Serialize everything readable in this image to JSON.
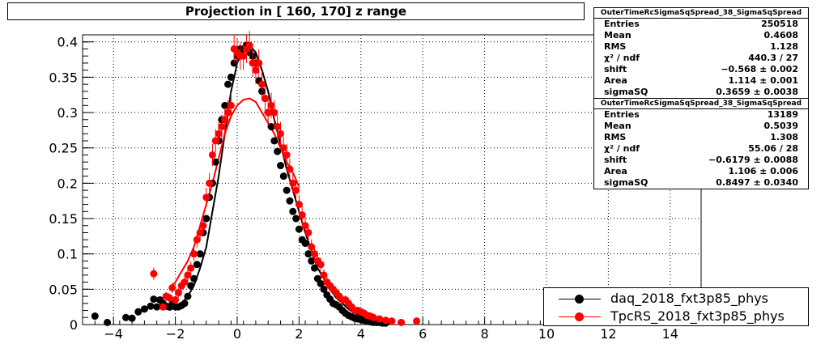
{
  "title": "Projection in [ 160, 170] z range",
  "colors": {
    "series0": "#000000",
    "series1": "#ff0000",
    "grid": "#000000"
  },
  "stats_boxes": [
    {
      "header": "OuterTimeRcSigmaSqSpread_38_SigmaSqSpread",
      "rows": [
        {
          "label": "Entries",
          "value": "250518"
        },
        {
          "label": "Mean",
          "value": "0.4608"
        },
        {
          "label": "RMS",
          "value": "1.128"
        },
        {
          "label": "χ² / ndf",
          "value": "440.3 / 27"
        },
        {
          "label": "shift",
          "value": "−0.568 ± 0.002"
        },
        {
          "label": "Area",
          "value": "1.114 ± 0.001"
        },
        {
          "label": "sigmaSQ",
          "value": "0.3659 ± 0.0038"
        }
      ]
    },
    {
      "header": "OuterTimeRcSigmaSqSpread_38_SigmaSqSpread",
      "rows": [
        {
          "label": "Entries",
          "value": "13189"
        },
        {
          "label": "Mean",
          "value": "0.5039"
        },
        {
          "label": "RMS",
          "value": "1.308"
        },
        {
          "label": "χ² / ndf",
          "value": "55.06 / 28"
        },
        {
          "label": "shift",
          "value": "−0.6179 ± 0.0088"
        },
        {
          "label": "Area",
          "value": "1.106 ± 0.006"
        },
        {
          "label": "sigmaSQ",
          "value": "0.8497 ± 0.0340"
        }
      ]
    }
  ],
  "legend": [
    "daq_2018_fxt3p85_phys",
    "TpcRS_2018_fxt3p85_phys"
  ],
  "chart_data": {
    "type": "scatter",
    "title": "Projection in [ 160, 170] z range",
    "xlabel": "",
    "ylabel": "",
    "xlim": [
      -5,
      15
    ],
    "ylim": [
      0,
      0.41
    ],
    "grid": true,
    "legend_position": "bottom-right",
    "x_ticks": [
      -4,
      -2,
      0,
      2,
      4,
      6,
      8,
      10,
      12,
      14
    ],
    "x_tick_labels": [
      "−4",
      "−2",
      "0",
      "2",
      "4",
      "6",
      "8",
      "10",
      "12",
      "14"
    ],
    "y_ticks": [
      0,
      0.05,
      0.1,
      0.15,
      0.2,
      0.25,
      0.3,
      0.35,
      0.4
    ],
    "y_tick_labels": [
      "0",
      "0.05",
      "0.1",
      "0.15",
      "0.2",
      "0.25",
      "0.3",
      "0.35",
      "0.4"
    ],
    "series": [
      {
        "name": "daq_2018_fxt3p85_phys",
        "color": "#000000",
        "x": [
          -4.6,
          -4.2,
          -3.6,
          -3.4,
          -3.2,
          -3.0,
          -2.8,
          -2.7,
          -2.6,
          -2.5,
          -2.4,
          -2.3,
          -2.2,
          -2.1,
          -2.0,
          -1.9,
          -1.8,
          -1.7,
          -1.6,
          -1.5,
          -1.4,
          -1.3,
          -1.2,
          -1.1,
          -1.0,
          -0.9,
          -0.8,
          -0.7,
          -0.6,
          -0.5,
          -0.4,
          -0.3,
          -0.2,
          -0.1,
          0.0,
          0.1,
          0.2,
          0.3,
          0.4,
          0.5,
          0.6,
          0.7,
          0.8,
          0.9,
          1.0,
          1.1,
          1.2,
          1.3,
          1.4,
          1.5,
          1.6,
          1.7,
          1.8,
          1.9,
          2.0,
          2.1,
          2.2,
          2.3,
          2.4,
          2.5,
          2.6,
          2.7,
          2.8,
          2.9,
          3.0,
          3.1,
          3.2,
          3.3,
          3.4,
          3.5,
          3.6,
          3.7,
          3.8,
          3.9,
          4.0,
          4.1,
          4.2,
          4.3,
          4.4,
          4.5,
          4.6,
          4.7,
          4.8
        ],
        "y": [
          0.012,
          0.003,
          0.01,
          0.009,
          0.018,
          0.022,
          0.026,
          0.036,
          0.025,
          0.035,
          0.03,
          0.026,
          0.025,
          0.029,
          0.025,
          0.025,
          0.027,
          0.03,
          0.04,
          0.055,
          0.065,
          0.085,
          0.1,
          0.13,
          0.15,
          0.18,
          0.2,
          0.23,
          0.26,
          0.29,
          0.31,
          0.34,
          0.35,
          0.37,
          0.38,
          0.39,
          0.39,
          0.395,
          0.385,
          0.38,
          0.37,
          0.345,
          0.33,
          0.32,
          0.3,
          0.28,
          0.26,
          0.245,
          0.225,
          0.21,
          0.19,
          0.175,
          0.16,
          0.15,
          0.135,
          0.12,
          0.115,
          0.1,
          0.09,
          0.08,
          0.065,
          0.058,
          0.05,
          0.042,
          0.036,
          0.03,
          0.028,
          0.025,
          0.02,
          0.016,
          0.013,
          0.011,
          0.009,
          0.008,
          0.007,
          0.006,
          0.005,
          0.004,
          0.003,
          0.003,
          0.003,
          0.002,
          0.002
        ],
        "fit_x": [
          -2.2,
          -2.0,
          -1.8,
          -1.6,
          -1.4,
          -1.2,
          -1.0,
          -0.8,
          -0.6,
          -0.4,
          -0.2,
          0.0,
          0.2,
          0.4,
          0.6,
          0.8,
          1.0,
          1.2,
          1.4,
          1.6,
          1.8,
          2.0,
          2.2,
          2.4,
          2.6,
          2.8,
          3.0,
          3.2,
          3.4,
          3.6,
          3.8,
          4.0,
          4.4,
          4.8
        ],
        "fit_y": [
          0.02,
          0.025,
          0.03,
          0.04,
          0.055,
          0.08,
          0.11,
          0.16,
          0.21,
          0.27,
          0.33,
          0.37,
          0.39,
          0.395,
          0.385,
          0.36,
          0.33,
          0.29,
          0.255,
          0.22,
          0.19,
          0.16,
          0.13,
          0.105,
          0.08,
          0.065,
          0.05,
          0.038,
          0.03,
          0.022,
          0.016,
          0.012,
          0.006,
          0.002
        ]
      },
      {
        "name": "TpcRS_2018_fxt3p85_phys",
        "color": "#ff0000",
        "x": [
          -2.7,
          -2.4,
          -2.3,
          -2.2,
          -2.1,
          -2.0,
          -1.9,
          -1.8,
          -1.7,
          -1.6,
          -1.5,
          -1.4,
          -1.3,
          -1.2,
          -1.1,
          -1.0,
          -0.9,
          -0.8,
          -0.7,
          -0.6,
          -0.5,
          -0.4,
          -0.3,
          -0.2,
          -0.1,
          0.0,
          0.1,
          0.2,
          0.3,
          0.4,
          0.5,
          0.6,
          0.7,
          0.8,
          0.9,
          1.0,
          1.1,
          1.2,
          1.3,
          1.4,
          1.5,
          1.6,
          1.7,
          1.8,
          1.9,
          2.0,
          2.1,
          2.2,
          2.3,
          2.4,
          2.5,
          2.6,
          2.7,
          2.8,
          2.9,
          3.0,
          3.1,
          3.2,
          3.3,
          3.4,
          3.5,
          3.6,
          3.7,
          3.8,
          3.9,
          4.0,
          4.1,
          4.2,
          4.3,
          4.4,
          4.6,
          4.8,
          5.0,
          5.3,
          5.8
        ],
        "y": [
          0.072,
          0.025,
          0.04,
          0.038,
          0.052,
          0.035,
          0.045,
          0.055,
          0.06,
          0.07,
          0.08,
          0.1,
          0.12,
          0.13,
          0.14,
          0.18,
          0.2,
          0.24,
          0.26,
          0.27,
          0.28,
          0.29,
          0.3,
          0.31,
          0.39,
          0.385,
          0.38,
          0.38,
          0.39,
          0.395,
          0.37,
          0.36,
          0.37,
          0.34,
          0.32,
          0.3,
          0.31,
          0.3,
          0.28,
          0.27,
          0.25,
          0.24,
          0.22,
          0.2,
          0.19,
          0.17,
          0.155,
          0.14,
          0.13,
          0.11,
          0.1,
          0.09,
          0.085,
          0.07,
          0.06,
          0.055,
          0.05,
          0.045,
          0.04,
          0.035,
          0.035,
          0.03,
          0.025,
          0.02,
          0.02,
          0.018,
          0.016,
          0.013,
          0.012,
          0.01,
          0.008,
          0.006,
          0.005,
          0.003,
          0.005
        ],
        "fit_x": [
          -2.2,
          -2.0,
          -1.8,
          -1.6,
          -1.4,
          -1.2,
          -1.0,
          -0.8,
          -0.6,
          -0.4,
          -0.2,
          0.0,
          0.2,
          0.4,
          0.6,
          0.8,
          1.0,
          1.2,
          1.4,
          1.6,
          1.8,
          2.0
        ],
        "fit_y": [
          0.05,
          0.06,
          0.075,
          0.09,
          0.11,
          0.14,
          0.17,
          0.2,
          0.235,
          0.27,
          0.295,
          0.31,
          0.318,
          0.32,
          0.315,
          0.3,
          0.285,
          0.27,
          0.25,
          0.23,
          0.215,
          0.195
        ]
      }
    ]
  }
}
